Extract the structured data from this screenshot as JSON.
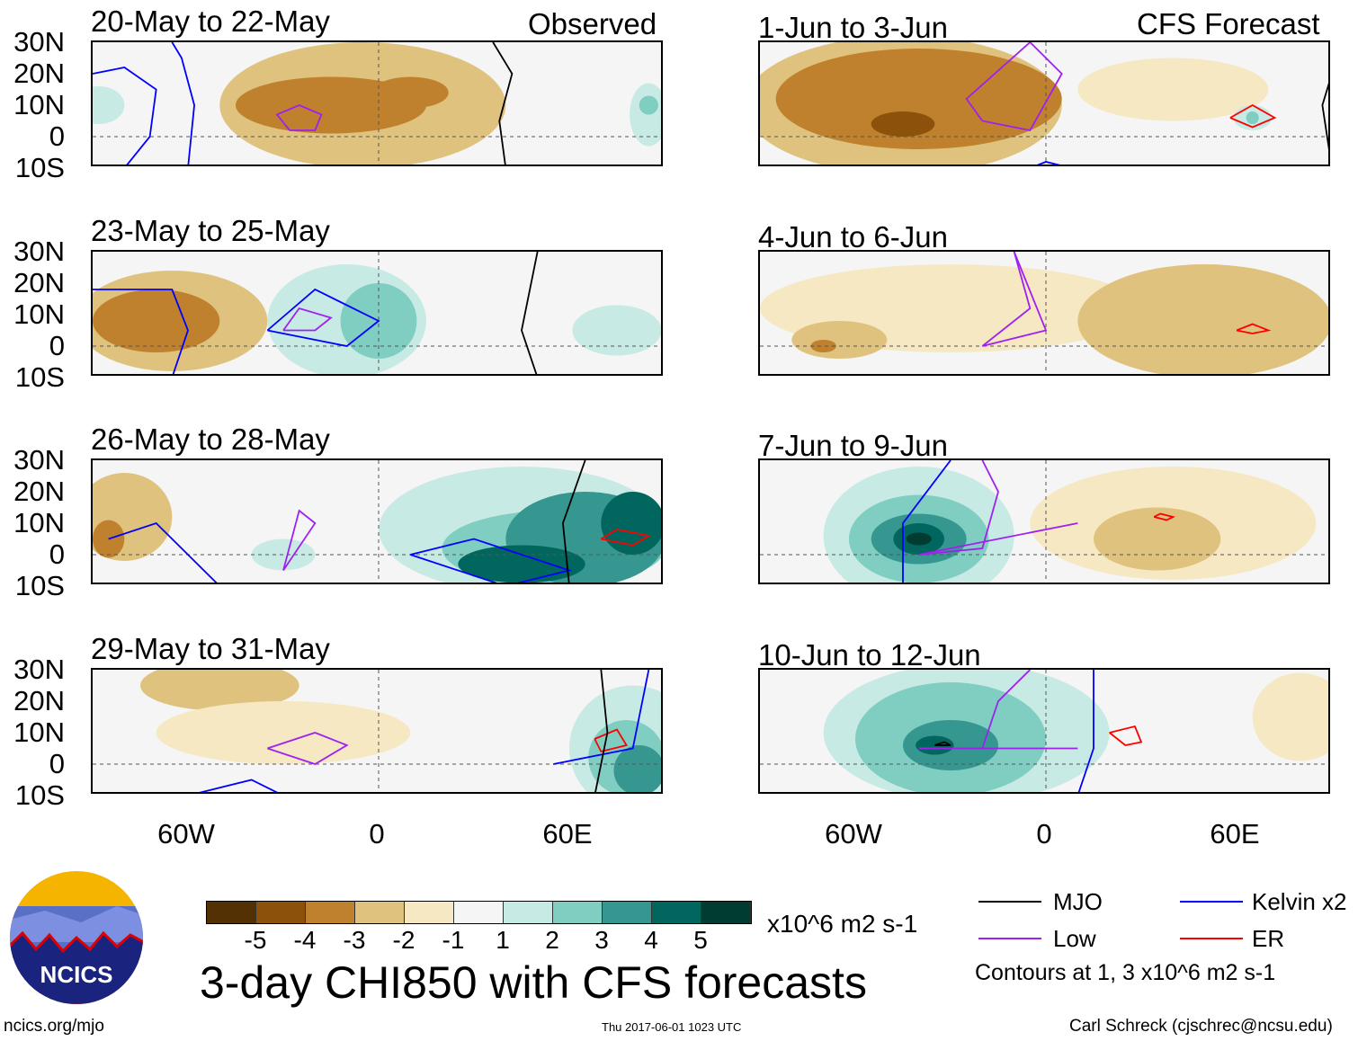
{
  "headers": {
    "observed": "Observed",
    "forecast": "CFS Forecast"
  },
  "lat_labels": [
    "30N",
    "20N",
    "10N",
    "0",
    "10S"
  ],
  "lon_labels": [
    "60W",
    "0",
    "60E"
  ],
  "colorbar": {
    "labels": [
      "-5",
      "-4",
      "-3",
      "-2",
      "-1",
      "1",
      "2",
      "3",
      "4",
      "5"
    ],
    "colors": [
      "#543005",
      "#8c510a",
      "#bf812d",
      "#dfc27d",
      "#f6e8c3",
      "#f5f5f5",
      "#c7eae5",
      "#80cdc1",
      "#35978f",
      "#01665e",
      "#003c30"
    ],
    "units": "x10^6 m2 s-1"
  },
  "title": "3-day CHI850 with CFS forecasts",
  "legend": {
    "mjo": "MJO",
    "low": "Low",
    "kelvin": "Kelvin x2",
    "er": "ER",
    "note": "Contours at 1, 3 x10^6 m2 s-1",
    "colors": {
      "mjo": "#000000",
      "low": "#a020f0",
      "kelvin": "#0000ff",
      "er": "#ff0000"
    }
  },
  "logo": "NCICS",
  "footer": {
    "url": "ncics.org/mjo",
    "timestamp": "Thu 2017-06-01 1023 UTC",
    "author": "Carl Schreck (cjschrec@ncsu.edu)"
  },
  "panels": [
    {
      "title": "20-May to 22-May",
      "blobs": [
        [
          -5,
          10,
          45,
          20,
          -2
        ],
        [
          -15,
          10,
          30,
          9,
          -3
        ],
        [
          10,
          14,
          12,
          5,
          -3
        ],
        [
          -88,
          10,
          8,
          6,
          1
        ],
        [
          85,
          7,
          6,
          10,
          1
        ],
        [
          85,
          10,
          3,
          3,
          2
        ]
      ],
      "lines": [
        [
          "low",
          [
            [
              -28,
              2
            ],
            [
              -20,
              2
            ],
            [
              -18,
              7
            ],
            [
              -25,
              10
            ],
            [
              -32,
              7
            ],
            [
              -28,
              2
            ]
          ]
        ],
        [
          "kelvin",
          [
            [
              -60,
              -10
            ],
            [
              -58,
              10
            ],
            [
              -62,
              25
            ],
            [
              -65,
              30
            ]
          ]
        ],
        [
          "kelvin",
          [
            [
              -90,
              20
            ],
            [
              -80,
              22
            ],
            [
              -70,
              15
            ],
            [
              -72,
              0
            ],
            [
              -80,
              -10
            ]
          ]
        ],
        [
          "mjo",
          [
            [
              40,
              -10
            ],
            [
              38,
              5
            ],
            [
              42,
              20
            ],
            [
              36,
              30
            ]
          ]
        ]
      ]
    },
    {
      "title": "1-Jun to 3-Jun",
      "blobs": [
        [
          -45,
          10,
          50,
          22,
          -2
        ],
        [
          -40,
          12,
          45,
          16,
          -3
        ],
        [
          -45,
          4,
          10,
          4,
          -4
        ],
        [
          40,
          15,
          30,
          10,
          -1
        ],
        [
          65,
          6,
          6,
          4,
          1
        ],
        [
          65,
          6,
          2,
          2,
          2
        ]
      ],
      "lines": [
        [
          "low",
          [
            [
              -20,
              5
            ],
            [
              -5,
              2
            ],
            [
              5,
              20
            ],
            [
              -5,
              30
            ],
            [
              -25,
              12
            ],
            [
              -20,
              5
            ]
          ]
        ],
        [
          "er",
          [
            [
              58,
              6
            ],
            [
              65,
              3
            ],
            [
              72,
              6
            ],
            [
              65,
              10
            ],
            [
              58,
              6
            ]
          ]
        ],
        [
          "kelvin",
          [
            [
              -5,
              -10
            ],
            [
              0,
              -8
            ],
            [
              8,
              -10
            ]
          ]
        ],
        [
          "mjo",
          [
            [
              90,
              -10
            ],
            [
              87,
              10
            ],
            [
              90,
              20
            ]
          ]
        ]
      ]
    },
    {
      "title": "23-May to 25-May",
      "blobs": [
        [
          -65,
          8,
          30,
          16,
          -2
        ],
        [
          -70,
          8,
          20,
          10,
          -3
        ],
        [
          -10,
          8,
          25,
          18,
          1
        ],
        [
          0,
          8,
          12,
          12,
          2
        ],
        [
          75,
          5,
          14,
          8,
          1
        ]
      ],
      "lines": [
        [
          "low",
          [
            [
              -30,
              5
            ],
            [
              -20,
              5
            ],
            [
              -15,
              9
            ],
            [
              -25,
              12
            ],
            [
              -30,
              5
            ]
          ]
        ],
        [
          "kelvin",
          [
            [
              -35,
              5
            ],
            [
              -20,
              18
            ],
            [
              0,
              8
            ],
            [
              -10,
              0
            ],
            [
              -35,
              5
            ]
          ]
        ],
        [
          "kelvin",
          [
            [
              -90,
              18
            ],
            [
              -65,
              18
            ],
            [
              -60,
              5
            ],
            [
              -65,
              -10
            ]
          ]
        ],
        [
          "mjo",
          [
            [
              50,
              -10
            ],
            [
              45,
              5
            ],
            [
              50,
              30
            ]
          ]
        ]
      ]
    },
    {
      "title": "4-Jun to 6-Jun",
      "blobs": [
        [
          -30,
          12,
          60,
          14,
          -1
        ],
        [
          50,
          8,
          40,
          18,
          -2
        ],
        [
          -65,
          2,
          15,
          6,
          -2
        ],
        [
          55,
          0,
          15,
          4,
          -2
        ],
        [
          -70,
          0,
          4,
          2,
          -3
        ]
      ],
      "lines": [
        [
          "low",
          [
            [
              -20,
              0
            ],
            [
              -5,
              12
            ],
            [
              -10,
              30
            ]
          ]
        ],
        [
          "low",
          [
            [
              -20,
              0
            ],
            [
              0,
              5
            ],
            [
              -10,
              30
            ]
          ]
        ],
        [
          "er",
          [
            [
              60,
              5
            ],
            [
              65,
              4
            ],
            [
              70,
              5
            ],
            [
              65,
              7
            ],
            [
              60,
              5
            ]
          ]
        ]
      ]
    },
    {
      "title": "26-May to 28-May",
      "blobs": [
        [
          -80,
          12,
          15,
          14,
          -2
        ],
        [
          -85,
          5,
          5,
          6,
          -3
        ],
        [
          45,
          8,
          45,
          20,
          1
        ],
        [
          55,
          2,
          35,
          12,
          2
        ],
        [
          65,
          5,
          25,
          15,
          3
        ],
        [
          45,
          -3,
          20,
          6,
          4
        ],
        [
          80,
          10,
          10,
          10,
          4
        ],
        [
          -30,
          0,
          10,
          5,
          1
        ]
      ],
      "lines": [
        [
          "low",
          [
            [
              -30,
              -5
            ],
            [
              -20,
              10
            ],
            [
              -25,
              14
            ],
            [
              -30,
              -5
            ]
          ]
        ],
        [
          "kelvin",
          [
            [
              10,
              0
            ],
            [
              30,
              5
            ],
            [
              60,
              -5
            ],
            [
              40,
              -10
            ],
            [
              10,
              0
            ]
          ]
        ],
        [
          "kelvin",
          [
            [
              -85,
              5
            ],
            [
              -70,
              10
            ],
            [
              -60,
              0
            ],
            [
              -50,
              -10
            ]
          ]
        ],
        [
          "mjo",
          [
            [
              60,
              -10
            ],
            [
              58,
              10
            ],
            [
              65,
              30
            ]
          ]
        ],
        [
          "er",
          [
            [
              70,
              5
            ],
            [
              80,
              3
            ],
            [
              85,
              6
            ],
            [
              75,
              8
            ],
            [
              70,
              5
            ]
          ]
        ]
      ]
    },
    {
      "title": "7-Jun to 9-Jun",
      "blobs": [
        [
          -40,
          6,
          30,
          22,
          1
        ],
        [
          -40,
          5,
          22,
          14,
          2
        ],
        [
          -40,
          5,
          15,
          8,
          3
        ],
        [
          -40,
          5,
          8,
          5,
          4
        ],
        [
          -40,
          5,
          4,
          2,
          5
        ],
        [
          40,
          10,
          45,
          18,
          -1
        ],
        [
          35,
          5,
          20,
          10,
          -2
        ]
      ],
      "lines": [
        [
          "kelvin",
          [
            [
              -45,
              -10
            ],
            [
              -45,
              10
            ],
            [
              -30,
              30
            ]
          ]
        ],
        [
          "low",
          [
            [
              -40,
              0
            ],
            [
              -20,
              2
            ],
            [
              -15,
              20
            ],
            [
              -20,
              30
            ]
          ]
        ],
        [
          "low",
          [
            [
              -40,
              0
            ],
            [
              10,
              10
            ]
          ]
        ],
        [
          "er",
          [
            [
              34,
              12
            ],
            [
              38,
              11
            ],
            [
              40,
              12
            ],
            [
              36,
              13
            ],
            [
              34,
              12
            ]
          ]
        ]
      ]
    },
    {
      "title": "29-May to 31-May",
      "blobs": [
        [
          -50,
          25,
          25,
          8,
          -2
        ],
        [
          -30,
          10,
          40,
          10,
          -1
        ],
        [
          80,
          5,
          20,
          20,
          1
        ],
        [
          78,
          2,
          12,
          12,
          2
        ],
        [
          82,
          -2,
          8,
          8,
          3
        ]
      ],
      "lines": [
        [
          "low",
          [
            [
              -35,
              5
            ],
            [
              -20,
              10
            ],
            [
              -10,
              6
            ],
            [
              -20,
              0
            ],
            [
              -35,
              5
            ]
          ]
        ],
        [
          "kelvin",
          [
            [
              -60,
              -10
            ],
            [
              -40,
              -5
            ],
            [
              -30,
              -10
            ]
          ]
        ],
        [
          "kelvin",
          [
            [
              55,
              0
            ],
            [
              80,
              5
            ],
            [
              85,
              30
            ]
          ]
        ],
        [
          "er",
          [
            [
              68,
              8
            ],
            [
              75,
              11
            ],
            [
              78,
              6
            ],
            [
              70,
              4
            ],
            [
              68,
              8
            ]
          ]
        ],
        [
          "mjo",
          [
            [
              68,
              -10
            ],
            [
              72,
              10
            ],
            [
              70,
              30
            ]
          ]
        ]
      ]
    },
    {
      "title": "10-Jun to 12-Jun",
      "blobs": [
        [
          -25,
          10,
          45,
          22,
          1
        ],
        [
          -30,
          8,
          30,
          18,
          2
        ],
        [
          -30,
          6,
          15,
          8,
          3
        ],
        [
          -35,
          6,
          6,
          3,
          4
        ],
        [
          80,
          15,
          15,
          14,
          -1
        ]
      ],
      "lines": [
        [
          "low",
          [
            [
              -40,
              5
            ],
            [
              -20,
              5
            ],
            [
              -15,
              20
            ],
            [
              -5,
              30
            ]
          ]
        ],
        [
          "low",
          [
            [
              -40,
              5
            ],
            [
              10,
              5
            ]
          ]
        ],
        [
          "kelvin",
          [
            [
              10,
              -10
            ],
            [
              15,
              5
            ],
            [
              15,
              30
            ]
          ]
        ],
        [
          "mjo",
          [
            [
              -35,
              6
            ],
            [
              -30,
              6
            ],
            [
              -32,
              7
            ],
            [
              -35,
              6
            ]
          ]
        ],
        [
          "er",
          [
            [
              20,
              10
            ],
            [
              28,
              12
            ],
            [
              30,
              7
            ],
            [
              25,
              6
            ],
            [
              20,
              10
            ]
          ]
        ]
      ]
    }
  ]
}
